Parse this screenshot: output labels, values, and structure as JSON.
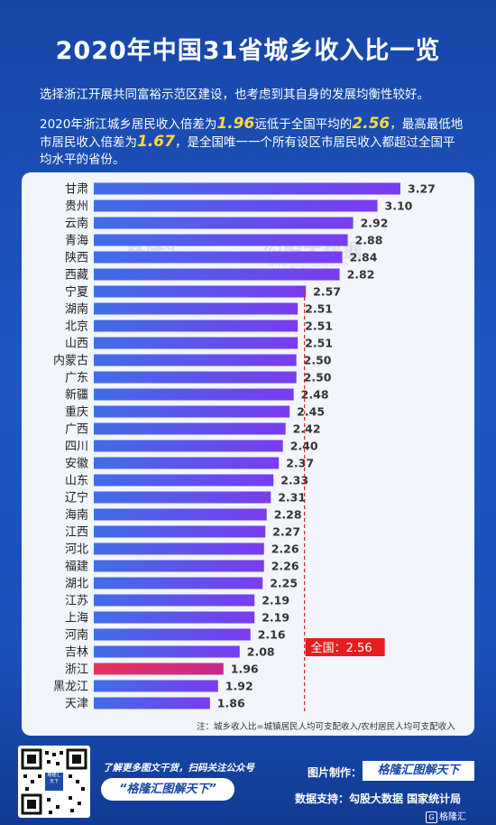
{
  "header": {
    "title": "2020年中国31省城乡收入比一览",
    "intro_line1": "选择浙江开展共同富裕示范区建设，也考虑到其自身的发展均衡性较好。",
    "intro_p2_a": "2020年浙江城乡居民收入倍差为",
    "intro_p2_v1": "1.96",
    "intro_p2_b": "远低于全国平均的",
    "intro_p2_v2": "2.56",
    "intro_p2_c": "，最高最低地市居民收入倍差为",
    "intro_p2_v3": "1.67",
    "intro_p2_d": "，是全国唯一一个所有设区市居民收入都超过全国平均水平的省份。"
  },
  "chart_data": {
    "type": "bar",
    "orientation": "horizontal",
    "categories": [
      "甘肃",
      "贵州",
      "云南",
      "青海",
      "陕西",
      "西藏",
      "宁夏",
      "湖南",
      "北京",
      "山西",
      "内蒙古",
      "广东",
      "新疆",
      "重庆",
      "广西",
      "四川",
      "安徽",
      "山东",
      "辽宁",
      "海南",
      "江西",
      "河北",
      "福建",
      "湖北",
      "江苏",
      "上海",
      "河南",
      "吉林",
      "浙江",
      "黑龙江",
      "天津"
    ],
    "values": [
      3.27,
      3.1,
      2.92,
      2.88,
      2.84,
      2.82,
      2.57,
      2.51,
      2.51,
      2.51,
      2.5,
      2.5,
      2.48,
      2.45,
      2.42,
      2.4,
      2.37,
      2.33,
      2.31,
      2.28,
      2.27,
      2.26,
      2.26,
      2.25,
      2.19,
      2.19,
      2.16,
      2.08,
      1.96,
      1.92,
      1.86
    ],
    "value_labels": [
      "3.27",
      "3.10",
      "2.92",
      "2.88",
      "2.84",
      "2.82",
      "2.57",
      "2.51",
      "2.51",
      "2.51",
      "2.50",
      "2.50",
      "2.48",
      "2.45",
      "2.42",
      "2.40",
      "2.37",
      "2.33",
      "2.31",
      "2.28",
      "2.27",
      "2.26",
      "2.26",
      "2.25",
      "2.19",
      "2.19",
      "2.16",
      "2.08",
      "1.96",
      "1.92",
      "1.86"
    ],
    "highlight": "浙江",
    "reference_line": {
      "value": 2.56,
      "label": "全国：2.56"
    },
    "xlim": [
      1.0,
      3.27
    ],
    "colors": {
      "bar_start": "#3f6ee6",
      "bar_end": "#7a3cf0",
      "highlight_start": "#e8345a",
      "highlight_end": "#c52a8f",
      "reference": "#e02020",
      "label_bg": "#e41e1e"
    }
  },
  "watermark": {
    "logo": "格隆汇",
    "data": "勾股大数据",
    "url": "www.gogudata.com"
  },
  "footnote": "注：城乡收入比=城镇居民人均可支配收入/农村居民人均可支配收入",
  "footer": {
    "qr_label": "格隆汇\n天下",
    "follow_text": "了解更多图文干货，扫码关注公众号",
    "slogan": "“格隆汇图解天下”",
    "maker_label": "图片制作：",
    "maker_badge": "格隆汇图解天下",
    "source": "数据支持：勾股大数据 国家统计局",
    "brand": "格隆汇"
  }
}
